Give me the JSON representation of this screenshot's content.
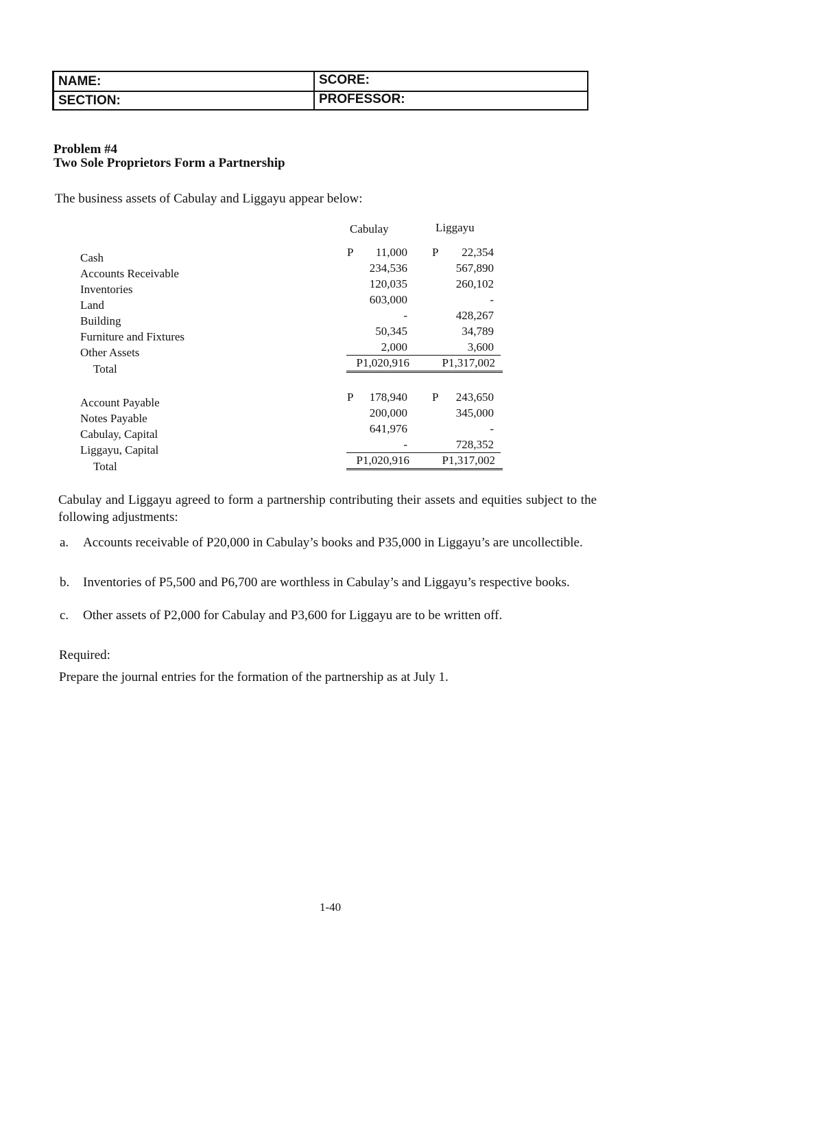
{
  "header": {
    "name_label": "NAME:",
    "section_label": "SECTION:",
    "score_label": "SCORE:",
    "professor_label": "PROFESSOR:"
  },
  "problem": {
    "number": "Problem #4",
    "title": "Two Sole Proprietors Form a Partnership",
    "intro": "The business assets of Cabulay and Liggayu appear below:"
  },
  "table": {
    "columns": [
      "Cabulay",
      "Liggayu"
    ],
    "assets": [
      {
        "label": "Cash",
        "cabulay": "11,000",
        "liggayu": "22,354",
        "peso": true
      },
      {
        "label": "Accounts Receivable",
        "cabulay": "234,536",
        "liggayu": "567,890"
      },
      {
        "label": "Inventories",
        "cabulay": "120,035",
        "liggayu": "260,102"
      },
      {
        "label": "Land",
        "cabulay": "603,000",
        "liggayu": "-"
      },
      {
        "label": "Building",
        "cabulay": "-",
        "liggayu": "428,267"
      },
      {
        "label": "Furniture and Fixtures",
        "cabulay": "50,345",
        "liggayu": "34,789"
      },
      {
        "label": "Other Assets",
        "cabulay": "2,000",
        "liggayu": "3,600"
      }
    ],
    "assets_total": {
      "label": "Total",
      "cabulay": "P1,020,916",
      "liggayu": "P1,317,002"
    },
    "equities": [
      {
        "label": "Account Payable",
        "cabulay": "178,940",
        "liggayu": "243,650",
        "peso": true
      },
      {
        "label": "Notes Payable",
        "cabulay": "200,000",
        "liggayu": "345,000"
      },
      {
        "label": "Cabulay, Capital",
        "cabulay": "641,976",
        "liggayu": "-"
      },
      {
        "label": "Liggayu, Capital",
        "cabulay": "-",
        "liggayu": "728,352"
      }
    ],
    "equities_total": {
      "label": "Total",
      "cabulay": "P1,020,916",
      "liggayu": "P1,317,002"
    },
    "peso_sign": "P"
  },
  "body": {
    "paragraph": "Cabulay and Liggayu agreed to form a partnership contributing their assets and equities subject to the following adjustments:",
    "items": [
      {
        "marker": "a.",
        "text": "Accounts receivable of P20,000 in Cabulay’s books and P35,000 in Liggayu’s are uncollectible."
      },
      {
        "marker": "b.",
        "text": "Inventories of P5,500 and P6,700 are worthless in Cabulay’s and Liggayu’s respective books."
      },
      {
        "marker": "c.",
        "text": "Other assets of P2,000 for Cabulay and P3,600 for Liggayu are to be written off."
      }
    ],
    "required_label": "Required:",
    "required_text": "Prepare the journal entries for the formation of the partnership as at July 1."
  },
  "footer": {
    "page_number": "1-40"
  }
}
